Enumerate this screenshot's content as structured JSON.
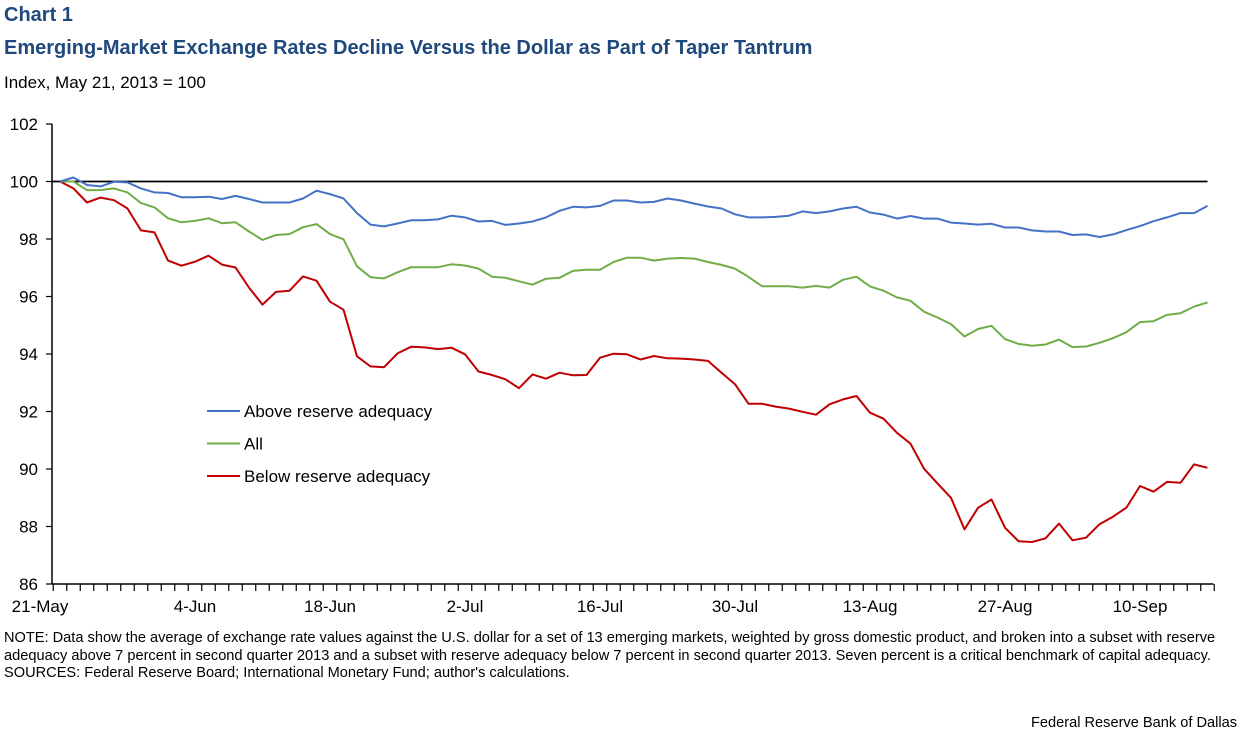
{
  "header": {
    "chart_label": "Chart 1",
    "title": "Emerging-Market Exchange Rates Decline Versus the Dollar  as Part of Taper Tantrum",
    "subtitle": "Index, May 21, 2013 = 100"
  },
  "footer": {
    "note": "NOTE: Data show the average of exchange rate values against the U.S. dollar for a set of 13 emerging markets, weighted by gross domestic product, and broken into a subset with reserve adequacy above 7 percent in second quarter 2013 and a subset with reserve adequacy below 7 percent in second quarter 2013. Seven percent is a critical benchmark of capital adequacy.",
    "sources": "SOURCES: Federal Reserve Board; International Monetary Fund; author's calculations.",
    "credit": "Federal Reserve Bank of Dallas"
  },
  "chart_data": {
    "type": "line",
    "title": "Emerging-Market Exchange Rates Decline Versus the Dollar  as Part of Taper Tantrum",
    "ylabel": "Index, May 21, 2013 = 100",
    "xlabel": "",
    "ylim": [
      86,
      102
    ],
    "yticks": [
      "86",
      "88",
      "90",
      "92",
      "94",
      "96",
      "98",
      "100",
      "102"
    ],
    "yticks_values": [
      86,
      88,
      90,
      92,
      94,
      96,
      98,
      100,
      102
    ],
    "n_points": 86,
    "xtick_labels": [
      "21-May",
      "4-Jun",
      "18-Jun",
      "2-Jul",
      "16-Jul",
      "30-Jul",
      "13-Aug",
      "27-Aug",
      "10-Sep"
    ],
    "xtick_every": 10,
    "reference_line": 100,
    "grid": false,
    "legend_position": "center-left",
    "series": [
      {
        "name": "Above reserve adequacy",
        "color": "#4472c4",
        "values": [
          100,
          100.14,
          99.88,
          99.83,
          99.99,
          99.97,
          99.76,
          99.62,
          99.6,
          99.45,
          99.45,
          99.47,
          99.39,
          99.5,
          99.39,
          99.27,
          99.27,
          99.27,
          99.41,
          99.68,
          99.56,
          99.41,
          98.9,
          98.5,
          98.44,
          98.54,
          98.65,
          98.65,
          98.68,
          98.81,
          98.75,
          98.61,
          98.63,
          98.49,
          98.54,
          98.61,
          98.75,
          98.98,
          99.12,
          99.1,
          99.15,
          99.34,
          99.34,
          99.27,
          99.29,
          99.41,
          99.34,
          99.23,
          99.13,
          99.06,
          98.86,
          98.75,
          98.75,
          98.77,
          98.81,
          98.96,
          98.9,
          98.96,
          99.06,
          99.12,
          98.92,
          98.85,
          98.71,
          98.8,
          98.71,
          98.71,
          98.57,
          98.54,
          98.5,
          98.53,
          98.4,
          98.4,
          98.3,
          98.26,
          98.26,
          98.14,
          98.16,
          98.07,
          98.16,
          98.31,
          98.45,
          98.62,
          98.75,
          98.9,
          98.9,
          99.15
        ]
      },
      {
        "name": "All",
        "color": "#70ad47",
        "values": [
          100,
          100,
          99.7,
          99.7,
          99.76,
          99.62,
          99.25,
          99.1,
          98.72,
          98.58,
          98.63,
          98.72,
          98.55,
          98.58,
          98.26,
          97.97,
          98.14,
          98.17,
          98.41,
          98.52,
          98.17,
          97.99,
          97.05,
          96.67,
          96.63,
          96.84,
          97.02,
          97.02,
          97.02,
          97.12,
          97.08,
          96.97,
          96.69,
          96.65,
          96.53,
          96.41,
          96.62,
          96.65,
          96.89,
          96.93,
          96.93,
          97.2,
          97.35,
          97.35,
          97.25,
          97.32,
          97.34,
          97.32,
          97.2,
          97.1,
          96.97,
          96.68,
          96.36,
          96.36,
          96.36,
          96.31,
          96.37,
          96.31,
          96.58,
          96.69,
          96.35,
          96.2,
          95.97,
          95.85,
          95.47,
          95.27,
          95.04,
          94.61,
          94.87,
          94.98,
          94.52,
          94.35,
          94.29,
          94.33,
          94.5,
          94.24,
          94.26,
          94.39,
          94.55,
          94.76,
          95.11,
          95.14,
          95.36,
          95.42,
          95.65,
          95.79
        ]
      },
      {
        "name": "Below reserve adequacy",
        "color": "#c00000",
        "values": [
          100,
          99.76,
          99.27,
          99.44,
          99.35,
          99.06,
          98.3,
          98.23,
          97.25,
          97.07,
          97.21,
          97.42,
          97.11,
          97.01,
          96.31,
          95.72,
          96.16,
          96.2,
          96.7,
          96.55,
          95.82,
          95.54,
          93.92,
          93.57,
          93.54,
          94.02,
          94.25,
          94.23,
          94.17,
          94.22,
          93.99,
          93.39,
          93.27,
          93.12,
          92.81,
          93.29,
          93.14,
          93.35,
          93.26,
          93.27,
          93.87,
          94.01,
          93.99,
          93.81,
          93.93,
          93.85,
          93.84,
          93.81,
          93.76,
          93.35,
          92.95,
          92.27,
          92.27,
          92.17,
          92.1,
          91.99,
          91.89,
          92.25,
          92.42,
          92.54,
          91.96,
          91.75,
          91.26,
          90.88,
          90.01,
          89.5,
          89.0,
          87.9,
          88.65,
          88.94,
          87.96,
          87.49,
          87.46,
          87.59,
          88.1,
          87.52,
          87.61,
          88.08,
          88.34,
          88.66,
          89.41,
          89.21,
          89.55,
          89.52,
          90.16,
          90.04
        ]
      }
    ]
  }
}
